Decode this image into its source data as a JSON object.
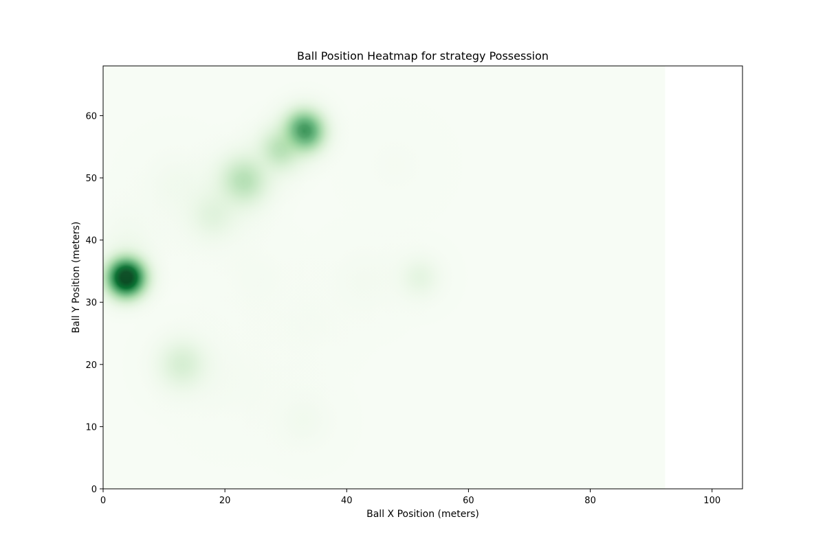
{
  "chart_data": {
    "type": "heatmap",
    "title": "Ball Position Heatmap for strategy Possession",
    "xlabel": "Ball X Position (meters)",
    "ylabel": "Ball Y Position (meters)",
    "xlim": [
      0,
      105
    ],
    "ylim": [
      0,
      68
    ],
    "x_ticks": [
      0,
      20,
      40,
      60,
      80,
      100
    ],
    "y_ticks": [
      0,
      10,
      20,
      30,
      40,
      50,
      60
    ],
    "density_extent_x": [
      0,
      92.3
    ],
    "colormap": "Greens",
    "colors": {
      "low": "#f7fcf5",
      "high": "#00441b",
      "background": "#ffffff",
      "axis": "#000000"
    },
    "grid": false,
    "legend": "none",
    "density_peaks": [
      {
        "x": 3.8,
        "y": 34.0,
        "relative_density": 1.0,
        "spread": 2.6
      },
      {
        "x": 33.0,
        "y": 57.5,
        "relative_density": 0.72,
        "spread": 2.8
      },
      {
        "x": 29.0,
        "y": 54.5,
        "relative_density": 0.38,
        "spread": 3.0
      },
      {
        "x": 23.0,
        "y": 49.5,
        "relative_density": 0.4,
        "spread": 3.5
      },
      {
        "x": 18.0,
        "y": 44.0,
        "relative_density": 0.22,
        "spread": 3.5
      },
      {
        "x": 13.0,
        "y": 20.0,
        "relative_density": 0.28,
        "spread": 3.5
      },
      {
        "x": 12.0,
        "y": 49.0,
        "relative_density": 0.1,
        "spread": 4.0
      },
      {
        "x": 52.0,
        "y": 34.0,
        "relative_density": 0.2,
        "spread": 2.8
      },
      {
        "x": 43.0,
        "y": 33.5,
        "relative_density": 0.08,
        "spread": 4.0
      },
      {
        "x": 33.0,
        "y": 11.0,
        "relative_density": 0.1,
        "spread": 3.5
      },
      {
        "x": 25.0,
        "y": 34.0,
        "relative_density": 0.06,
        "spread": 4.0
      },
      {
        "x": 34.0,
        "y": 26.0,
        "relative_density": 0.05,
        "spread": 4.0
      },
      {
        "x": 48.0,
        "y": 52.0,
        "relative_density": 0.05,
        "spread": 4.0
      },
      {
        "x": 22.0,
        "y": 17.0,
        "relative_density": 0.06,
        "spread": 5.0
      },
      {
        "x": 4.0,
        "y": 40.0,
        "relative_density": 0.1,
        "spread": 4.0
      }
    ]
  }
}
